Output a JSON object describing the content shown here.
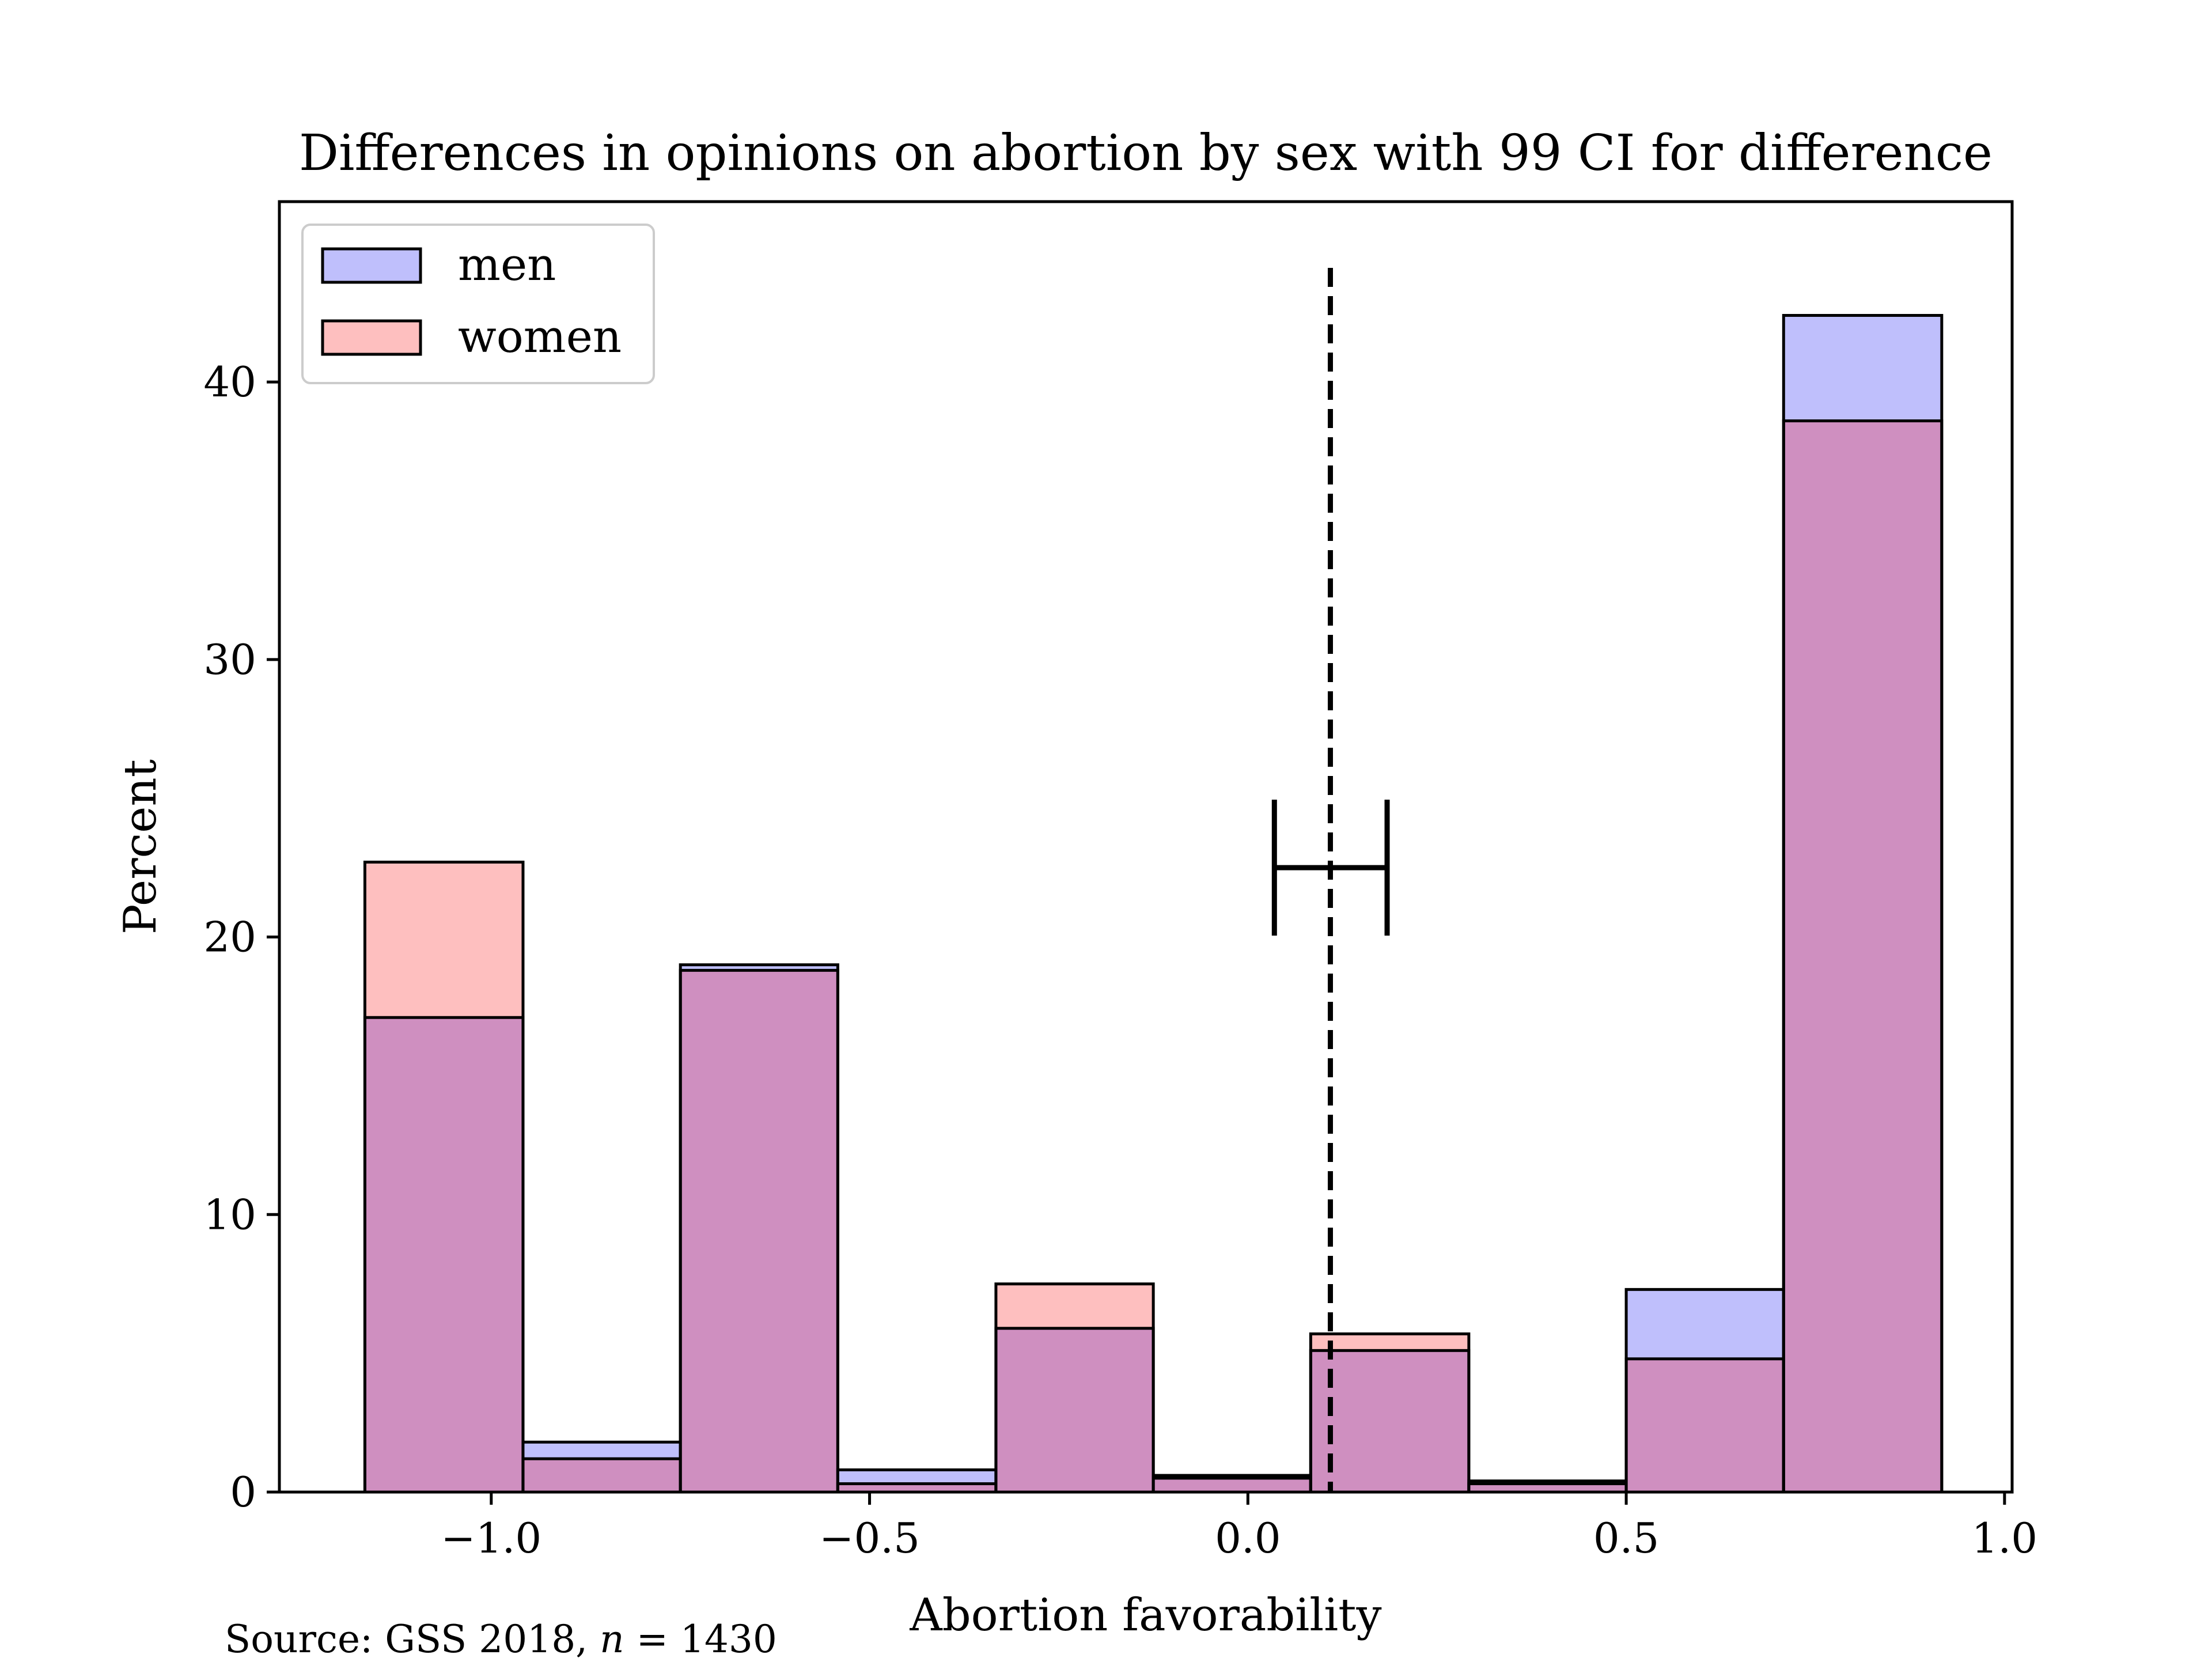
{
  "chart_data": {
    "type": "bar",
    "title": "Differences in opinions on abortion by sex with 99 CI for difference",
    "xlabel": "Abortion favorability",
    "ylabel": "Percent",
    "xlim": [
      -1.28,
      1.01
    ],
    "ylim": [
      0,
      46.5
    ],
    "x_ticks": [
      -1.0,
      -0.5,
      0.0,
      0.5,
      1.0
    ],
    "x_tick_labels": [
      "−1.0",
      "−0.5",
      "0.0",
      "0.5",
      "1.0"
    ],
    "y_ticks": [
      0,
      10,
      20,
      30,
      40
    ],
    "y_tick_labels": [
      "0",
      "10",
      "20",
      "30",
      "40"
    ],
    "grid": false,
    "legend_position": "top-left",
    "bin_edges": [
      -1.167,
      -0.958,
      -0.75,
      -0.542,
      -0.333,
      -0.125,
      0.083,
      0.292,
      0.5,
      0.708,
      0.917
    ],
    "series": [
      {
        "name": "men",
        "color": "#bfbffc",
        "values": [
          17.1,
          1.8,
          19.0,
          0.8,
          5.9,
          0.6,
          5.1,
          0.4,
          7.3,
          42.4
        ]
      },
      {
        "name": "women",
        "color": "#febfbf",
        "values": [
          22.7,
          1.2,
          18.8,
          0.3,
          7.5,
          0.5,
          5.7,
          0.3,
          4.8,
          38.6
        ]
      }
    ],
    "overlap_color": "#cf8fc0",
    "mean_difference_line": {
      "x": 0.109,
      "style": "dashed"
    },
    "ci_interval": {
      "low": 0.035,
      "high": 0.184,
      "y": 22.5
    }
  },
  "source_prefix": "Source: GSS 2018, ",
  "source_var": "n",
  "source_suffix": " = 1430"
}
